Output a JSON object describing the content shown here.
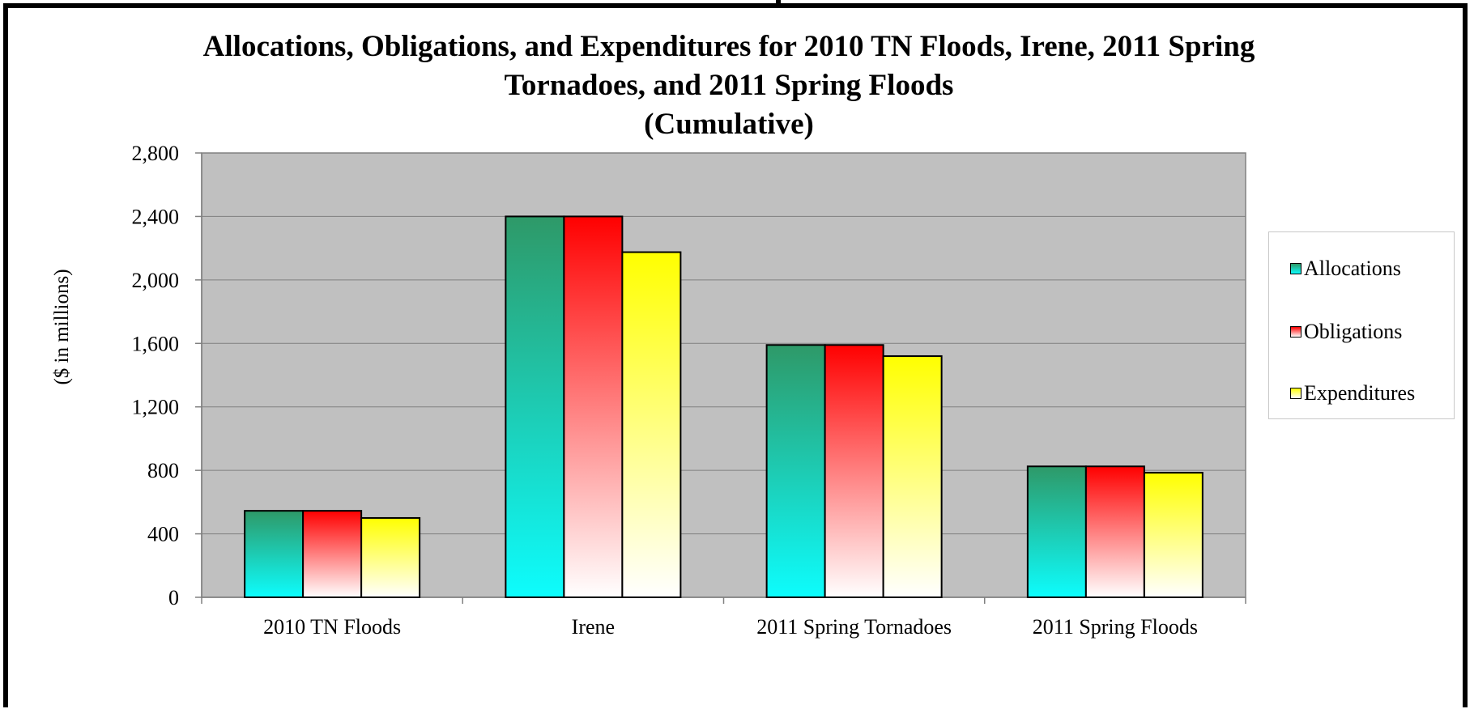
{
  "chart_data": {
    "type": "bar",
    "title_lines": [
      "Allocations, Obligations, and Expenditures for 2010 TN Floods, Irene, 2011 Spring",
      "Tornadoes, and 2011 Spring Floods",
      "(Cumulative)"
    ],
    "xlabel": "",
    "ylabel": "($ in millions)",
    "ylim": [
      0,
      2800
    ],
    "yticks": [
      0,
      400,
      800,
      1200,
      1600,
      2000,
      2400,
      2800
    ],
    "ytick_labels": [
      "0",
      "400",
      "800",
      "1,200",
      "1,600",
      "2,000",
      "2,400",
      "2,800"
    ],
    "categories": [
      "2010 TN Floods",
      "Irene",
      "2011 Spring Tornadoes",
      "2011 Spring Floods"
    ],
    "series": [
      {
        "name": "Allocations",
        "values": [
          545,
          2400,
          1590,
          825
        ],
        "gradient": [
          "#2e9968",
          "#0dfdfd"
        ]
      },
      {
        "name": "Obligations",
        "values": [
          545,
          2400,
          1590,
          825
        ],
        "gradient": [
          "#ff0000",
          "#ffffff"
        ]
      },
      {
        "name": "Expenditures",
        "values": [
          500,
          2175,
          1520,
          785
        ],
        "gradient": [
          "#ffff00",
          "#ffffff"
        ]
      }
    ],
    "grid": true,
    "plot_background": "#c0c0c0",
    "legend_position": "right"
  }
}
